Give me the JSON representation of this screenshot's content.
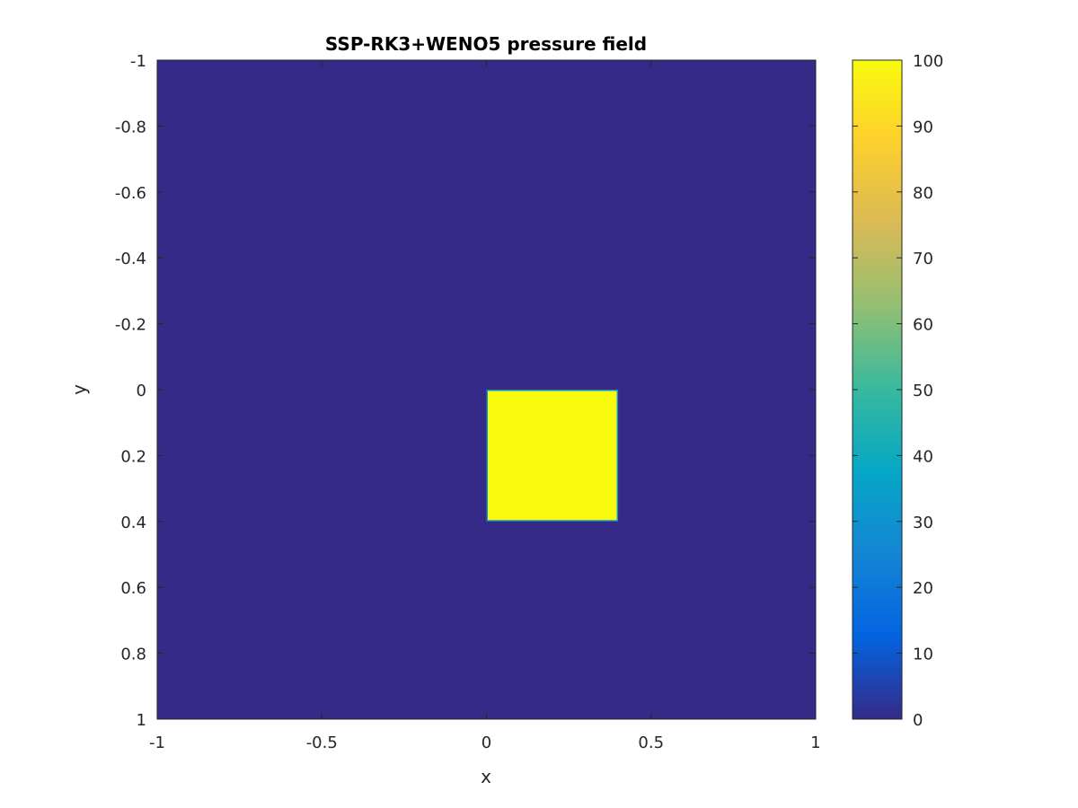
{
  "chart_data": {
    "type": "heatmap",
    "title": "SSP-RK3+WENO5 pressure field",
    "xlabel": "x",
    "ylabel": "y",
    "xlim": [
      -1,
      1
    ],
    "ylim": [
      -1,
      1
    ],
    "y_direction": "reversed",
    "x_ticks": [
      "-1",
      "-0.5",
      "0",
      "0.5",
      "1"
    ],
    "x_tick_values": [
      -1,
      -0.5,
      0,
      0.5,
      1
    ],
    "y_ticks": [
      "-1",
      "-0.8",
      "-0.6",
      "-0.4",
      "-0.2",
      "0",
      "0.2",
      "0.4",
      "0.6",
      "0.8",
      "1"
    ],
    "y_tick_values": [
      -1,
      -0.8,
      -0.6,
      -0.4,
      -0.2,
      0,
      0.2,
      0.4,
      0.6,
      0.8,
      1
    ],
    "background_value": 0,
    "regions": [
      {
        "x": [
          0,
          0.4
        ],
        "y": [
          0,
          0.4
        ],
        "value": 100
      }
    ],
    "colorbar": {
      "clim": [
        0,
        100
      ],
      "ticks": [
        "0",
        "10",
        "20",
        "30",
        "40",
        "50",
        "60",
        "70",
        "80",
        "90",
        "100"
      ],
      "tick_values": [
        0,
        10,
        20,
        30,
        40,
        50,
        60,
        70,
        80,
        90,
        100
      ],
      "colormap": "parula",
      "colormap_stops": [
        "#352a87",
        "#0363e1",
        "#1485d4",
        "#06a7c6",
        "#38b99e",
        "#92bf73",
        "#d9ba56",
        "#fcce2e",
        "#f9fb0e"
      ]
    },
    "grid": false
  }
}
